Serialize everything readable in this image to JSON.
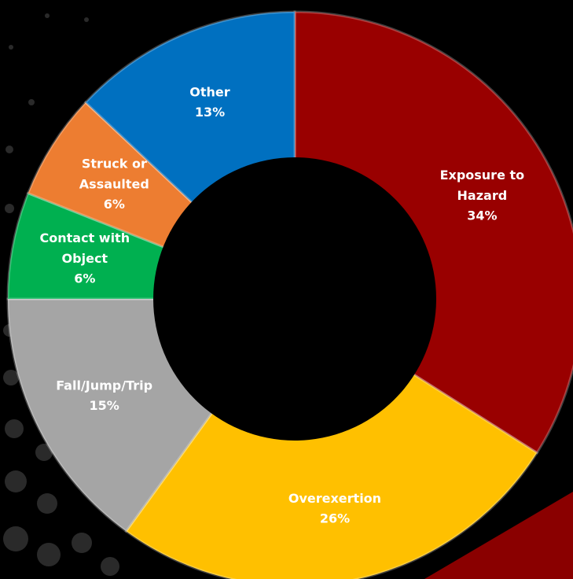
{
  "chart_data": {
    "type": "donut",
    "categories": [
      "Exposure to Hazard",
      "Overexertion",
      "Fall/Jump/Trip",
      "Contact with Object",
      "Struck or Assaulted",
      "Other"
    ],
    "values": [
      34,
      26,
      15,
      6,
      6,
      13
    ],
    "value_labels": [
      "34%",
      "26%",
      "15%",
      "6%",
      "6%",
      "13%"
    ],
    "colors": [
      "#990000",
      "#ffc000",
      "#a5a5a5",
      "#00b050",
      "#ed7d31",
      "#0070c0"
    ]
  }
}
